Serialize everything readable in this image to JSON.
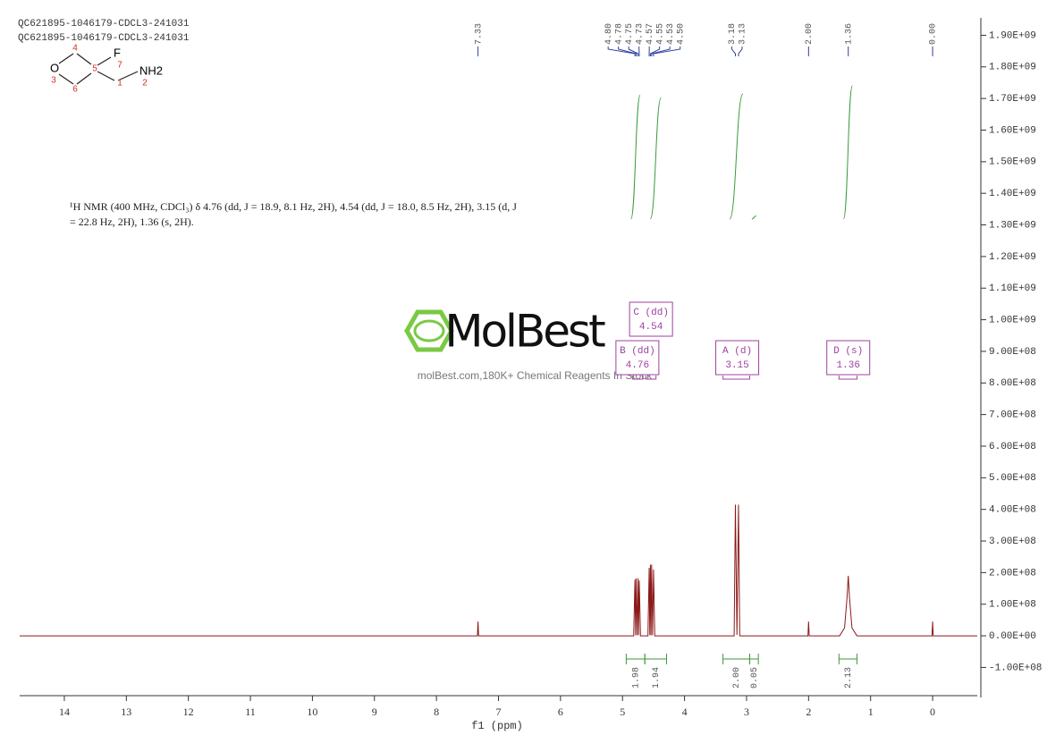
{
  "header": {
    "sample_lines": [
      "QC621895-1046179-CDCL3-241031",
      "QC621895-1046179-CDCL3-241031"
    ]
  },
  "structure": {
    "atoms": [
      "O",
      "F",
      "NH2"
    ],
    "locants": [
      "1",
      "2",
      "3",
      "4",
      "5",
      "6",
      "7"
    ]
  },
  "description": [
    "¹H NMR (400 MHz, CDCl₃) δ 4.76 (dd, J = 18.9, 8.1 Hz, 2H), 4.54 (dd, J = 18.0, 8.5 Hz, 2H), 3.15 (d, J",
    "= 22.8 Hz, 2H), 1.36 (s, 2H)."
  ],
  "watermark": {
    "brand": "MolBest",
    "tagline": "molBest.com,180K+ Chemical Reagents In Stock"
  },
  "chart_data": {
    "type": "nmr",
    "xlabel": "f1 (ppm)",
    "xlim": [
      14.72,
      -0.72
    ],
    "xticks": [
      14,
      13,
      12,
      11,
      10,
      9,
      8,
      7,
      6,
      5,
      4,
      3,
      2,
      1,
      0
    ],
    "ylim": [
      -195000000,
      1955000000
    ],
    "yticks": [
      {
        "value": -100000000,
        "label": "-1.00E+08"
      },
      {
        "value": 0,
        "label": "0.00E+00"
      },
      {
        "value": 100000000,
        "label": "1.00E+08"
      },
      {
        "value": 200000000,
        "label": "2.00E+08"
      },
      {
        "value": 300000000,
        "label": "3.00E+08"
      },
      {
        "value": 400000000,
        "label": "4.00E+08"
      },
      {
        "value": 500000000,
        "label": "5.00E+08"
      },
      {
        "value": 600000000,
        "label": "6.00E+08"
      },
      {
        "value": 700000000,
        "label": "7.00E+08"
      },
      {
        "value": 800000000,
        "label": "8.00E+08"
      },
      {
        "value": 900000000,
        "label": "9.00E+08"
      },
      {
        "value": 1000000000,
        "label": "1.00E+09"
      },
      {
        "value": 1100000000,
        "label": "1.10E+09"
      },
      {
        "value": 1200000000,
        "label": "1.20E+09"
      },
      {
        "value": 1300000000,
        "label": "1.30E+09"
      },
      {
        "value": 1400000000,
        "label": "1.40E+09"
      },
      {
        "value": 1500000000,
        "label": "1.50E+09"
      },
      {
        "value": 1600000000,
        "label": "1.60E+09"
      },
      {
        "value": 1700000000,
        "label": "1.70E+09"
      },
      {
        "value": 1800000000,
        "label": "1.80E+09"
      },
      {
        "value": 1900000000,
        "label": "1.90E+09"
      }
    ],
    "series": [
      {
        "color": "#8b1a1a",
        "x": [
          14.72,
          7.34,
          7.33,
          7.32,
          4.82,
          4.8,
          4.79,
          4.78,
          4.765,
          4.75,
          4.74,
          4.73,
          4.71,
          4.59,
          4.57,
          4.56,
          4.55,
          4.54,
          4.53,
          4.515,
          4.5,
          4.48,
          3.2,
          3.18,
          3.155,
          3.13,
          3.11,
          2.01,
          2.0,
          1.99,
          1.5,
          1.42,
          1.38,
          1.36,
          1.34,
          1.3,
          1.22,
          0.01,
          0.0,
          -0.01,
          -0.72
        ],
        "values": [
          0,
          0,
          45000000,
          0,
          0,
          178000000,
          2000000,
          182000000,
          2000000,
          182000000,
          2000000,
          175000000,
          0,
          0,
          215000000,
          2000000,
          225000000,
          2000000,
          225000000,
          2000000,
          210000000,
          0,
          0,
          415000000,
          3000000,
          415000000,
          0,
          0,
          45000000,
          0,
          0,
          25000000,
          120000000,
          190000000,
          120000000,
          25000000,
          0,
          0,
          45000000,
          0,
          0
        ]
      }
    ],
    "peak_labels": [
      7.33,
      {
        "value": 4.8,
        "label": "4.80"
      },
      4.78,
      4.75,
      4.73,
      4.57,
      4.55,
      4.53,
      {
        "value": 4.5,
        "label": "4.50"
      },
      3.18,
      3.13,
      {
        "value": 2,
        "label": "2.00"
      },
      1.36,
      {
        "value": 0,
        "label": "0.00"
      }
    ],
    "multiplets": {
      "names": [
        "B (dd)",
        "C (dd)",
        "A (d)",
        "D (s)"
      ],
      "shifts": [
        4.76,
        4.54,
        3.15,
        1.36
      ],
      "ranges": [
        [
          4.84,
          4.67
        ],
        [
          4.62,
          4.46
        ],
        [
          3.38,
          2.95
        ],
        [
          1.51,
          1.22
        ]
      ]
    },
    "integrals": {
      "ranges": [
        [
          4.94,
          4.64
        ],
        [
          4.64,
          4.29
        ],
        [
          3.38,
          2.95
        ],
        [
          2.95,
          2.81
        ],
        [
          1.51,
          1.22
        ]
      ],
      "values": [
        1.98,
        1.94,
        2,
        0.05,
        2.13
      ],
      "value_labels": [
        "1.98",
        "1.94",
        "2.00",
        "0.05",
        "2.13"
      ],
      "color": "#3a9a3a"
    }
  }
}
